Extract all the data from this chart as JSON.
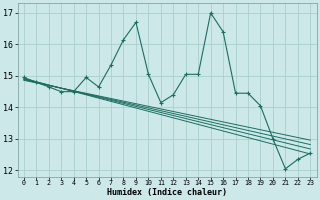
{
  "xlabel": "Humidex (Indice chaleur)",
  "ylabel": "",
  "bg_color": "#cce8e8",
  "grid_color": "#aacfcf",
  "line_color": "#1a6e60",
  "xlim": [
    -0.5,
    23.5
  ],
  "ylim": [
    11.8,
    17.3
  ],
  "xticks": [
    0,
    1,
    2,
    3,
    4,
    5,
    6,
    7,
    8,
    9,
    10,
    11,
    12,
    13,
    14,
    15,
    16,
    17,
    18,
    19,
    20,
    21,
    22,
    23
  ],
  "yticks": [
    12,
    13,
    14,
    15,
    16,
    17
  ],
  "series": [
    [
      0,
      14.95
    ],
    [
      1,
      14.8
    ],
    [
      2,
      14.65
    ],
    [
      3,
      14.5
    ],
    [
      4,
      14.5
    ],
    [
      5,
      14.95
    ],
    [
      6,
      14.65
    ],
    [
      7,
      15.35
    ],
    [
      8,
      16.15
    ],
    [
      9,
      16.7
    ],
    [
      10,
      15.05
    ],
    [
      11,
      14.15
    ],
    [
      12,
      14.4
    ],
    [
      13,
      15.05
    ],
    [
      14,
      15.05
    ],
    [
      15,
      17.0
    ],
    [
      16,
      16.4
    ],
    [
      17,
      14.45
    ],
    [
      18,
      14.45
    ],
    [
      19,
      14.05
    ],
    [
      20,
      13.0
    ],
    [
      21,
      12.05
    ],
    [
      22,
      12.35
    ],
    [
      23,
      12.55
    ]
  ],
  "trend_series": [
    [
      [
        0,
        14.92
      ],
      [
        23,
        12.52
      ]
    ],
    [
      [
        0,
        14.9
      ],
      [
        23,
        12.68
      ]
    ],
    [
      [
        0,
        14.88
      ],
      [
        23,
        12.82
      ]
    ],
    [
      [
        0,
        14.86
      ],
      [
        23,
        12.96
      ]
    ]
  ],
  "figsize": [
    3.2,
    2.0
  ],
  "dpi": 100
}
